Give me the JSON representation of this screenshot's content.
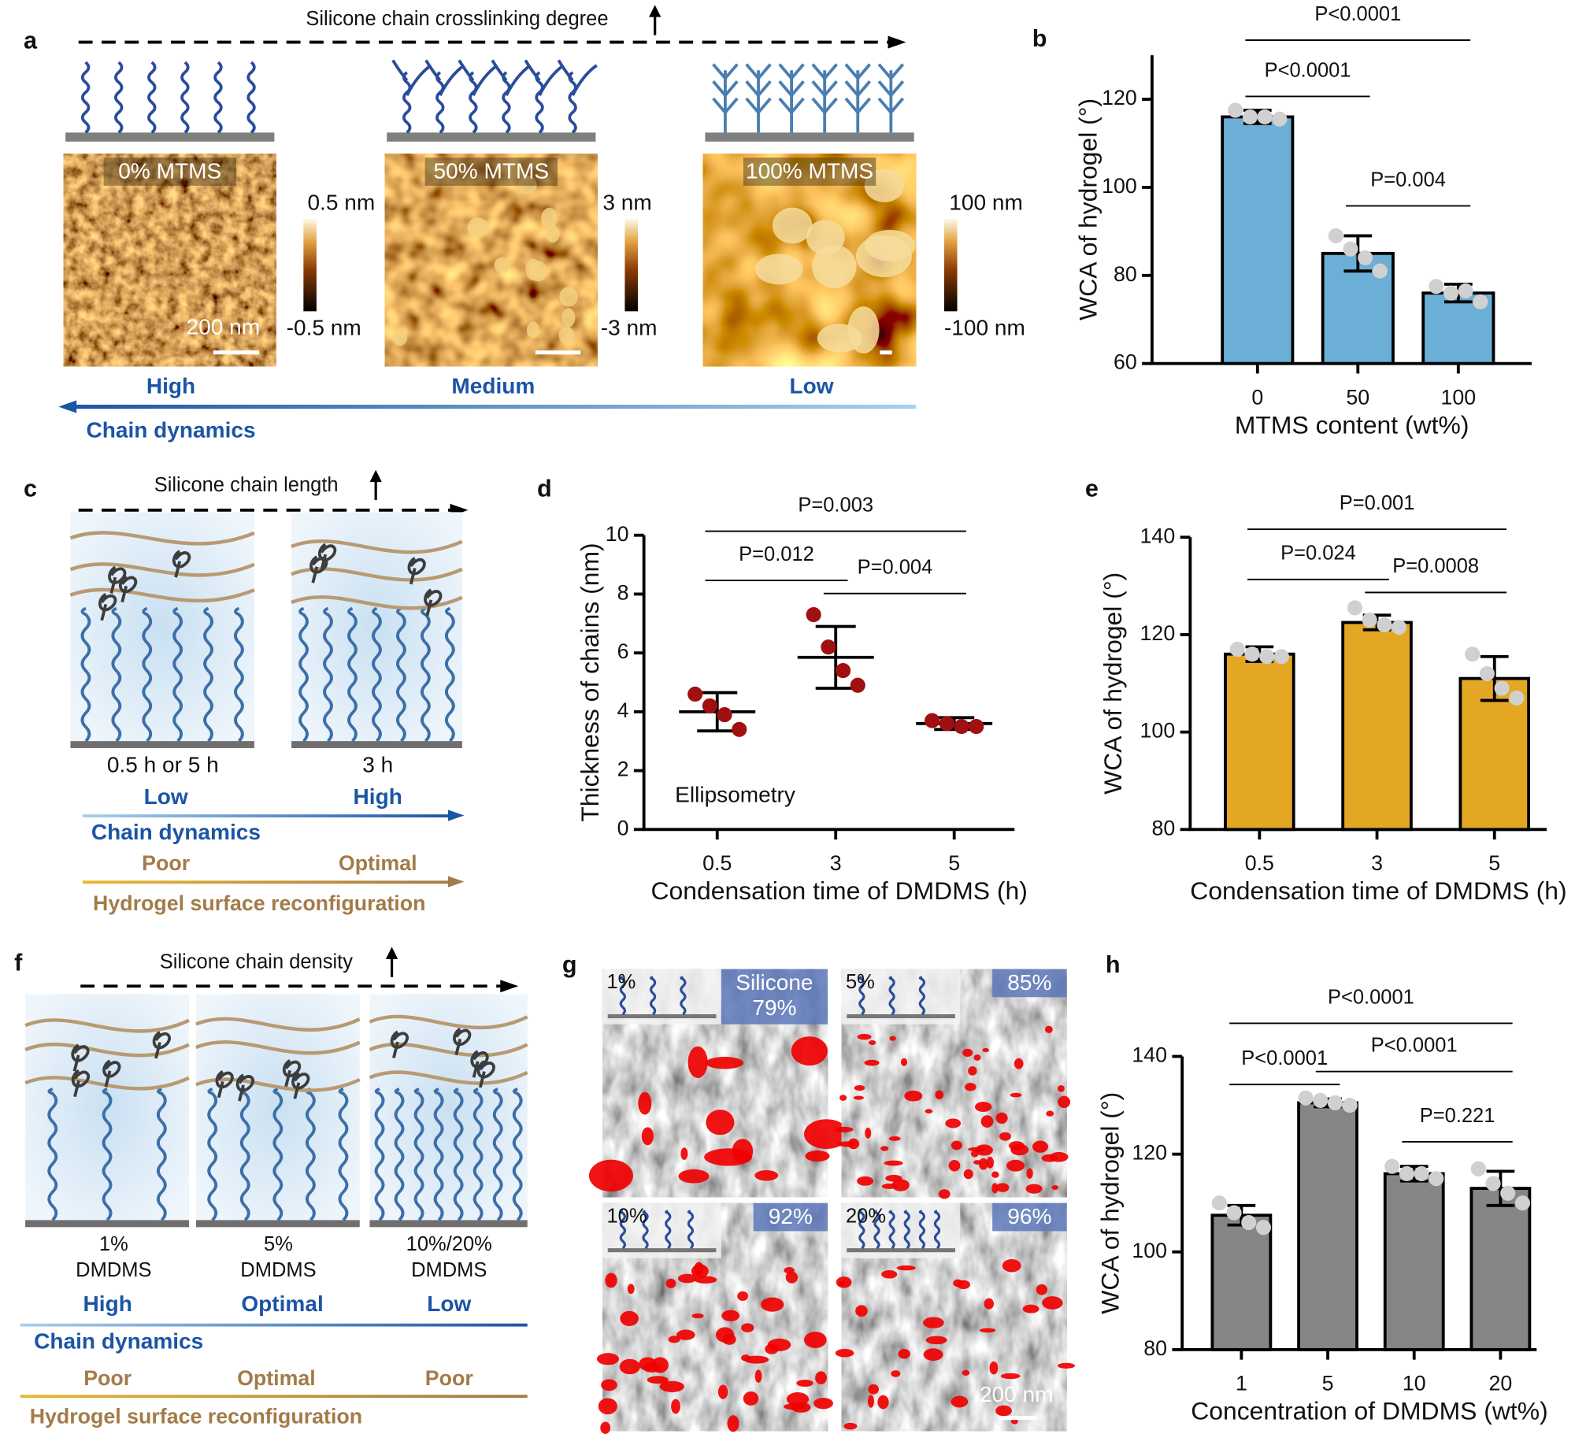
{
  "panels": {
    "a": {
      "label": "a",
      "title": "Silicone chain crosslinking degree",
      "images": [
        {
          "label": "0% MTMS",
          "max": "0.5 nm",
          "min": "-0.5 nm"
        },
        {
          "label": "50% MTMS",
          "max": "3 nm",
          "min": "-3 nm"
        },
        {
          "label": "100% MTMS",
          "max": "100 nm",
          "min": "-100 nm"
        }
      ],
      "scale_bar": "200 nm",
      "levels": [
        "High",
        "Medium",
        "Low"
      ],
      "arrow_label": "Chain dynamics"
    },
    "c": {
      "label": "c",
      "title": "Silicone chain length",
      "conditions": [
        "0.5 h or 5 h",
        "3 h"
      ],
      "dynamics": [
        "Low",
        "High"
      ],
      "dynamics_label": "Chain dynamics",
      "reconfiguration": [
        "Poor",
        "Optimal"
      ],
      "reconfiguration_label": "Hydrogel surface reconfiguration"
    },
    "f": {
      "label": "f",
      "title": "Silicone chain density",
      "conditions": [
        [
          "1%",
          "DMDMS"
        ],
        [
          "5%",
          "DMDMS"
        ],
        [
          "10%/20%",
          "DMDMS"
        ]
      ],
      "dynamics": [
        "High",
        "Optimal",
        "Low"
      ],
      "dynamics_label": "Chain dynamics",
      "reconfiguration": [
        "Poor",
        "Optimal",
        "Poor"
      ],
      "reconfiguration_label": "Hydrogel surface reconfiguration"
    },
    "g": {
      "label": "g",
      "tiles": [
        {
          "concentration": "1%",
          "coverage": [
            "Silicone",
            "79%"
          ]
        },
        {
          "concentration": "5%",
          "coverage": [
            "85%"
          ]
        },
        {
          "concentration": "10%",
          "coverage": [
            "92%"
          ]
        },
        {
          "concentration": "20%",
          "coverage": [
            "96%"
          ]
        }
      ],
      "scale_bar": "200 nm"
    }
  },
  "chart_data": [
    {
      "label": "b",
      "type": "bar",
      "categories": [
        "0",
        "50",
        "100"
      ],
      "values": [
        116,
        85,
        76
      ],
      "errors": [
        1.5,
        4,
        2
      ],
      "points": [
        [
          117.5,
          116,
          116,
          115.5
        ],
        [
          89,
          86,
          84,
          81
        ],
        [
          77.5,
          76,
          76.5,
          74
        ]
      ],
      "color": "#6baed6",
      "point_color": "#d0d0d0",
      "ylim": [
        60,
        130
      ],
      "yticks": [
        60,
        80,
        100,
        120
      ],
      "xlabel": "MTMS content (wt%)",
      "ylabel": "WCA of hydrogel (°)",
      "brackets": [
        {
          "label": "P<0.0001",
          "from": "0",
          "to": "100"
        },
        {
          "label": "P<0.0001",
          "from": "0",
          "to": "50"
        },
        {
          "label": "P=0.004",
          "from": "50",
          "to": "100"
        }
      ]
    },
    {
      "label": "d",
      "type": "dot",
      "categories": [
        "0.5",
        "3",
        "5"
      ],
      "values": [
        4.0,
        5.85,
        3.6
      ],
      "errors": [
        0.65,
        1.05,
        0.2
      ],
      "points": [
        [
          4.6,
          4.2,
          3.9,
          3.4
        ],
        [
          7.3,
          6.2,
          5.4,
          4.9
        ],
        [
          3.7,
          3.6,
          3.5,
          3.5
        ]
      ],
      "color": "#000000",
      "point_color": "#a01010",
      "ylim": [
        0,
        10
      ],
      "yticks": [
        0,
        2,
        4,
        6,
        8,
        10
      ],
      "xlabel": "Condensation time of DMDMS (h)",
      "ylabel": "Thickness of chains (nm)",
      "annotation": "Ellipsometry",
      "brackets": [
        {
          "label": "P=0.003",
          "from": "0.5",
          "to": "5"
        },
        {
          "label": "P=0.012",
          "from": "0.5",
          "to": "3"
        },
        {
          "label": "P=0.004",
          "from": "3",
          "to": "5"
        }
      ]
    },
    {
      "label": "e",
      "type": "bar",
      "categories": [
        "0.5",
        "3",
        "5"
      ],
      "values": [
        116,
        122.5,
        111
      ],
      "errors": [
        1.5,
        1.5,
        4.5
      ],
      "points": [
        [
          117,
          116,
          115.5,
          115.5
        ],
        [
          125.5,
          123,
          122,
          121.5
        ],
        [
          116,
          112,
          109,
          107
        ]
      ],
      "color": "#e3a724",
      "point_color": "#d0d0d0",
      "ylim": [
        80,
        140
      ],
      "yticks": [
        80,
        100,
        120,
        140
      ],
      "xlabel": "Condensation time of DMDMS (h)",
      "ylabel": "WCA of hydrogel (°)",
      "brackets": [
        {
          "label": "P=0.001",
          "from": "0.5",
          "to": "5"
        },
        {
          "label": "P=0.024",
          "from": "0.5",
          "to": "3"
        },
        {
          "label": "P=0.0008",
          "from": "3",
          "to": "5"
        }
      ]
    },
    {
      "label": "h",
      "type": "bar",
      "categories": [
        "1",
        "5",
        "10",
        "20"
      ],
      "values": [
        107.5,
        130.5,
        116,
        113
      ],
      "errors": [
        2,
        0.8,
        1.5,
        3.5
      ],
      "points": [
        [
          110,
          108,
          106,
          105
        ],
        [
          131.5,
          131,
          130.5,
          130
        ],
        [
          117.5,
          116,
          116,
          115
        ],
        [
          117,
          114,
          112,
          110
        ]
      ],
      "color": "#858585",
      "point_color": "#d0d0d0",
      "ylim": [
        80,
        140
      ],
      "yticks": [
        80,
        100,
        120,
        140
      ],
      "xlabel": "Concentration of DMDMS (wt%)",
      "ylabel": "WCA of hydrogel (°)",
      "brackets": [
        {
          "label": "P<0.0001",
          "from": "1",
          "to": "20"
        },
        {
          "label": "P<0.0001",
          "from": "1",
          "to": "5"
        },
        {
          "label": "P<0.0001",
          "from": "5",
          "to": "20"
        },
        {
          "label": "P=0.221",
          "from": "10",
          "to": "20"
        }
      ]
    }
  ]
}
